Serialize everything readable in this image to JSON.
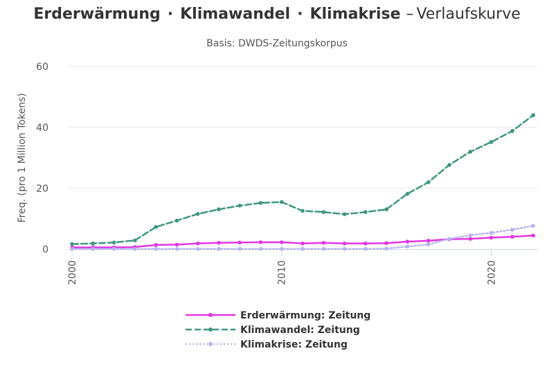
{
  "title": {
    "terms": [
      "Erderwärmung",
      "Klimawandel",
      "Klimakrise"
    ],
    "separator": "·",
    "dash": "–",
    "suffix": "Verlaufskurve"
  },
  "subtitle": "Basis: DWDS-Zeitungskorpus",
  "chart_data": {
    "type": "line",
    "title": "Erderwärmung · Klimawandel · Klimakrise – Verlaufskurve",
    "subtitle": "Basis: DWDS-Zeitungskorpus",
    "xlabel": "",
    "ylabel": "Freq. (pro 1 Million Tokens)",
    "x": [
      2000,
      2001,
      2002,
      2003,
      2004,
      2005,
      2006,
      2007,
      2008,
      2009,
      2010,
      2011,
      2012,
      2013,
      2014,
      2015,
      2016,
      2017,
      2018,
      2019,
      2020,
      2021,
      2022
    ],
    "xlim": [
      1999.8,
      2022.2
    ],
    "ylim": [
      0,
      60
    ],
    "xticks": [
      2000,
      2010,
      2020
    ],
    "yticks": [
      0,
      20,
      40,
      60
    ],
    "grid": "horizontal",
    "legend": "bottom",
    "series": [
      {
        "name": "Erderwärmung: Zeitung",
        "color": "#e335e3",
        "style": "solid",
        "values": [
          0.6,
          0.6,
          0.6,
          0.7,
          1.4,
          1.5,
          1.9,
          2.1,
          2.2,
          2.3,
          2.3,
          1.9,
          2.1,
          1.9,
          1.9,
          2.0,
          2.5,
          2.8,
          3.3,
          3.4,
          3.8,
          4.1,
          4.5
        ]
      },
      {
        "name": "Klimawandel: Zeitung",
        "color": "#3d9680",
        "style": "dashed",
        "values": [
          1.7,
          1.9,
          2.2,
          2.9,
          7.3,
          9.4,
          11.6,
          13.1,
          14.3,
          15.2,
          15.5,
          12.6,
          12.2,
          11.5,
          12.2,
          13.1,
          18.2,
          22.0,
          27.7,
          32.0,
          35.2,
          38.8,
          44.0
        ]
      },
      {
        "name": "Klimakrise: Zeitung",
        "color": "#b5b5ee",
        "style": "dotted",
        "values": [
          0.1,
          0.1,
          0.1,
          0.1,
          0.1,
          0.1,
          0.1,
          0.1,
          0.1,
          0.1,
          0.1,
          0.1,
          0.1,
          0.1,
          0.1,
          0.2,
          0.9,
          1.6,
          3.4,
          4.6,
          5.4,
          6.4,
          7.7
        ]
      }
    ]
  }
}
